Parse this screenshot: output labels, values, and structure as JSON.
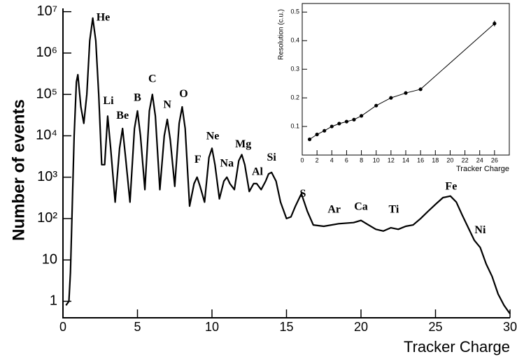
{
  "chart_data": [
    {
      "type": "line",
      "log_y": true,
      "color": "#000000",
      "annotation_color": "#e01818",
      "xlabel": "Tracker Charge",
      "ylabel": "Number of events",
      "xlim": [
        0,
        30
      ],
      "xticks": [
        0,
        5,
        10,
        15,
        20,
        25,
        30
      ],
      "ylim": [
        0.4,
        12000000
      ],
      "yticks": [
        1,
        10,
        {
          "value": 100,
          "label": "10²"
        },
        {
          "value": 1000,
          "label": "10³"
        },
        {
          "value": 10000,
          "label": "10⁴"
        },
        {
          "value": 100000,
          "label": "10⁵"
        },
        {
          "value": 1000000,
          "label": "10⁶"
        },
        {
          "value": 10000000,
          "label": "10⁷"
        }
      ],
      "x": [
        0.2,
        0.4,
        0.5,
        0.6,
        0.75,
        0.9,
        1.0,
        1.2,
        1.4,
        1.6,
        1.8,
        2.0,
        2.2,
        2.4,
        2.6,
        2.8,
        3.0,
        3.2,
        3.5,
        3.8,
        4.0,
        4.2,
        4.5,
        4.8,
        5.0,
        5.2,
        5.5,
        5.8,
        6.0,
        6.2,
        6.5,
        6.8,
        7.0,
        7.2,
        7.5,
        7.8,
        8.0,
        8.2,
        8.5,
        8.8,
        9.0,
        9.2,
        9.5,
        9.8,
        10.0,
        10.2,
        10.5,
        10.8,
        11.0,
        11.2,
        11.5,
        11.8,
        12.0,
        12.2,
        12.5,
        12.8,
        13.0,
        13.3,
        13.6,
        13.8,
        14.0,
        14.3,
        14.6,
        15.0,
        15.3,
        15.6,
        16.0,
        16.4,
        16.8,
        17.5,
        18.5,
        19.5,
        20.0,
        20.5,
        21.0,
        21.5,
        22.0,
        22.5,
        23.0,
        23.5,
        24.0,
        24.5,
        25.0,
        25.5,
        26.0,
        26.4,
        26.8,
        27.2,
        27.6,
        28.0,
        28.4,
        28.8,
        29.2,
        29.6,
        30.0
      ],
      "values": [
        0.8,
        1,
        5,
        100,
        10000,
        200000,
        300000,
        50000,
        20000,
        100000,
        2000000,
        7000000,
        2000000,
        100000,
        2000,
        2000,
        30000,
        5000,
        250,
        5000,
        15000,
        3000,
        250,
        15000,
        40000,
        10000,
        500,
        40000,
        100000,
        30000,
        500,
        10000,
        25000,
        8000,
        600,
        20000,
        50000,
        15000,
        200,
        700,
        1000,
        600,
        250,
        3000,
        5000,
        2000,
        300,
        800,
        1000,
        700,
        500,
        2500,
        3500,
        2000,
        450,
        700,
        700,
        500,
        800,
        1200,
        1300,
        800,
        250,
        100,
        110,
        200,
        400,
        150,
        70,
        65,
        75,
        80,
        90,
        70,
        55,
        50,
        60,
        55,
        65,
        70,
        100,
        150,
        220,
        320,
        350,
        250,
        120,
        60,
        30,
        20,
        8,
        4,
        1.5,
        0.8,
        0.5
      ],
      "annotations": [
        {
          "text": "He",
          "x": 2.7,
          "y": 7000000
        },
        {
          "text": "Li",
          "x": 3.05,
          "y": 68000
        },
        {
          "text": "Be",
          "x": 4.0,
          "y": 30000
        },
        {
          "text": "B",
          "x": 5.0,
          "y": 80000
        },
        {
          "text": "C",
          "x": 6.0,
          "y": 230000
        },
        {
          "text": "N",
          "x": 7.0,
          "y": 54000
        },
        {
          "text": "O",
          "x": 8.1,
          "y": 100000
        },
        {
          "text": "F",
          "x": 9.05,
          "y": 2600
        },
        {
          "text": "Ne",
          "x": 10.05,
          "y": 9500
        },
        {
          "text": "Na",
          "x": 11.0,
          "y": 2100
        },
        {
          "text": "Mg",
          "x": 12.1,
          "y": 6000
        },
        {
          "text": "Al",
          "x": 13.05,
          "y": 1300
        },
        {
          "text": "Si",
          "x": 14.0,
          "y": 2900
        },
        {
          "text": "S",
          "x": 16.1,
          "y": 380
        },
        {
          "text": "Ar",
          "x": 18.2,
          "y": 160
        },
        {
          "text": "Ca",
          "x": 20.0,
          "y": 186
        },
        {
          "text": "Ti",
          "x": 22.2,
          "y": 160
        },
        {
          "text": "Fe",
          "x": 26.05,
          "y": 580
        },
        {
          "text": "Ni",
          "x": 28.0,
          "y": 51
        }
      ]
    },
    {
      "type": "errorline",
      "color": "#000000",
      "xlabel": "Tracker Charge",
      "ylabel": "Resolution (c.u.)",
      "xlim": [
        0,
        28
      ],
      "xticks": [
        0,
        2,
        4,
        6,
        8,
        10,
        12,
        14,
        16,
        18,
        20,
        22,
        24,
        26
      ],
      "ylim": [
        0,
        0.53
      ],
      "yticks": [
        0.1,
        0.2,
        0.3,
        0.4,
        0.5
      ],
      "x": [
        1,
        2,
        3,
        4,
        5,
        6,
        7,
        8,
        10,
        12,
        14,
        16,
        26
      ],
      "values": [
        0.055,
        0.072,
        0.085,
        0.1,
        0.11,
        0.117,
        0.124,
        0.137,
        0.173,
        0.2,
        0.217,
        0.23,
        0.46
      ],
      "errors": [
        0.003,
        0.003,
        0.003,
        0.003,
        0.003,
        0.003,
        0.003,
        0.003,
        0.003,
        0.003,
        0.003,
        0.003,
        0.01
      ]
    }
  ]
}
